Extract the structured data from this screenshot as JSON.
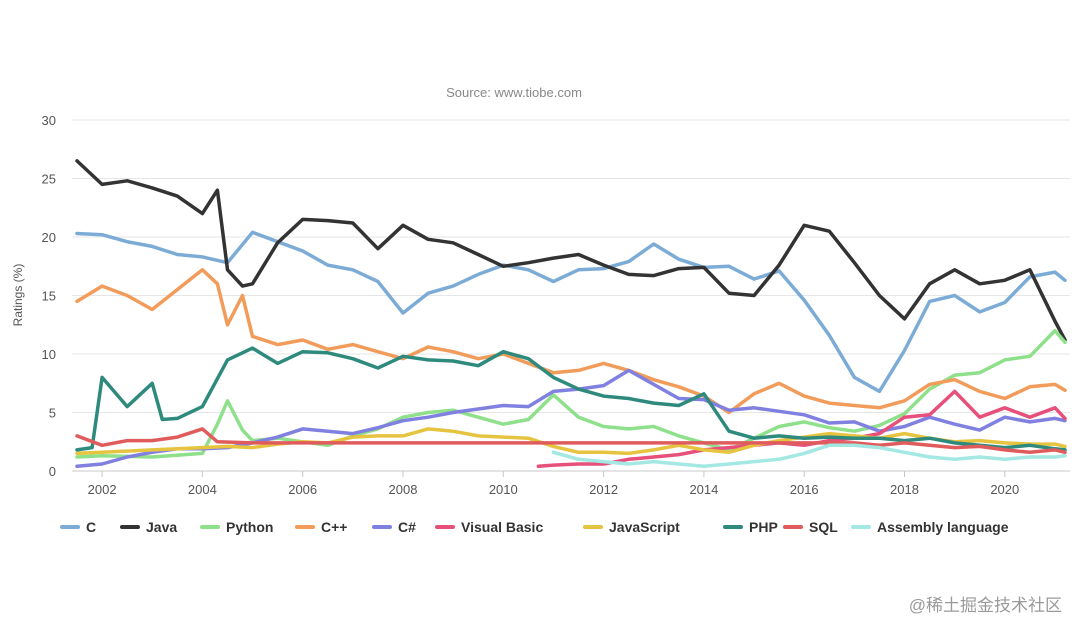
{
  "chart_data": {
    "type": "line",
    "subtitle": "Source: www.tiobe.com",
    "ylabel": "Ratings (%)",
    "xlabel": "",
    "ylim": [
      0,
      30
    ],
    "xlim": [
      2001.4,
      2021.3
    ],
    "yticks": [
      0,
      5,
      10,
      15,
      20,
      25,
      30
    ],
    "xticks": [
      2002,
      2004,
      2006,
      2008,
      2010,
      2012,
      2014,
      2016,
      2018,
      2020
    ],
    "ytick_labels": [
      "0",
      "5",
      "10",
      "15",
      "20",
      "25",
      "30"
    ],
    "xtick_labels": [
      "2002",
      "2004",
      "2006",
      "2008",
      "2010",
      "2012",
      "2014",
      "2016",
      "2018",
      "2020"
    ],
    "grid": true,
    "legend_position": "bottom",
    "series": [
      {
        "name": "C",
        "color": "#7cacd6",
        "x": [
          2001.5,
          2002,
          2002.5,
          2003,
          2003.5,
          2004,
          2004.5,
          2005,
          2005.5,
          2006,
          2006.5,
          2007,
          2007.5,
          2008,
          2008.5,
          2009,
          2009.5,
          2010,
          2010.5,
          2011,
          2011.5,
          2012,
          2012.5,
          2013,
          2013.5,
          2014,
          2014.5,
          2015,
          2015.5,
          2016,
          2016.5,
          2017,
          2017.5,
          2018,
          2018.5,
          2019,
          2019.5,
          2020,
          2020.5,
          2021,
          2021.2
        ],
        "y": [
          20.3,
          20.2,
          19.6,
          19.2,
          18.5,
          18.3,
          17.8,
          20.4,
          19.6,
          18.8,
          17.6,
          17.2,
          16.2,
          13.5,
          15.2,
          15.8,
          16.8,
          17.6,
          17.2,
          16.2,
          17.2,
          17.3,
          17.9,
          19.4,
          18.1,
          17.4,
          17.5,
          16.4,
          17.1,
          14.6,
          11.6,
          8.0,
          6.8,
          10.3,
          14.5,
          15.0,
          13.6,
          14.4,
          16.6,
          17.0,
          16.3
        ]
      },
      {
        "name": "Java",
        "color": "#333333",
        "x": [
          2001.5,
          2002,
          2002.5,
          2003,
          2003.5,
          2004,
          2004.3,
          2004.5,
          2004.8,
          2005,
          2005.5,
          2006,
          2006.5,
          2007,
          2007.5,
          2008,
          2008.5,
          2009,
          2009.5,
          2010,
          2010.5,
          2011,
          2011.5,
          2012,
          2012.5,
          2013,
          2013.5,
          2014,
          2014.5,
          2015,
          2015.5,
          2016,
          2016.5,
          2017,
          2017.5,
          2018,
          2018.5,
          2019,
          2019.5,
          2020,
          2020.5,
          2021,
          2021.2
        ],
        "y": [
          26.5,
          24.5,
          24.8,
          24.2,
          23.5,
          22.0,
          24.0,
          17.2,
          15.8,
          16.0,
          19.5,
          21.5,
          21.4,
          21.2,
          19.0,
          21.0,
          19.8,
          19.5,
          18.5,
          17.5,
          17.8,
          18.2,
          18.5,
          17.6,
          16.8,
          16.7,
          17.3,
          17.4,
          15.2,
          15.0,
          17.6,
          21.0,
          20.5,
          17.8,
          15.0,
          13.0,
          16.0,
          17.2,
          16.0,
          16.3,
          17.2,
          12.8,
          11.2
        ]
      },
      {
        "name": "Python",
        "color": "#8fe08a",
        "x": [
          2001.5,
          2002,
          2003,
          2004,
          2004.3,
          2004.5,
          2004.8,
          2005,
          2005.5,
          2006,
          2006.5,
          2007,
          2007.5,
          2008,
          2008.5,
          2009,
          2009.5,
          2010,
          2010.5,
          2011,
          2011.5,
          2012,
          2012.5,
          2013,
          2013.5,
          2014,
          2014.5,
          2015,
          2015.5,
          2016,
          2016.5,
          2017,
          2017.5,
          2018,
          2018.5,
          2019,
          2019.5,
          2020,
          2020.5,
          2021,
          2021.2
        ],
        "y": [
          1.2,
          1.3,
          1.2,
          1.5,
          4.0,
          6.0,
          3.5,
          2.6,
          2.8,
          2.5,
          2.2,
          3.0,
          3.6,
          4.6,
          5.0,
          5.2,
          4.6,
          4.0,
          4.4,
          6.5,
          4.6,
          3.8,
          3.6,
          3.8,
          3.0,
          2.4,
          1.8,
          2.8,
          3.8,
          4.2,
          3.7,
          3.4,
          3.9,
          4.9,
          7.0,
          8.2,
          8.4,
          9.5,
          9.8,
          12.0,
          11.0
        ]
      },
      {
        "name": "C++",
        "color": "#f29c5b",
        "x": [
          2001.5,
          2002,
          2002.5,
          2003,
          2003.5,
          2004,
          2004.3,
          2004.5,
          2004.8,
          2005,
          2005.5,
          2006,
          2006.5,
          2007,
          2007.5,
          2008,
          2008.5,
          2009,
          2009.5,
          2010,
          2010.5,
          2011,
          2011.5,
          2012,
          2012.5,
          2013,
          2013.5,
          2014,
          2014.5,
          2015,
          2015.5,
          2016,
          2016.5,
          2017,
          2017.5,
          2018,
          2018.5,
          2019,
          2019.5,
          2020,
          2020.5,
          2021,
          2021.2
        ],
        "y": [
          14.5,
          15.8,
          15.0,
          13.8,
          15.5,
          17.2,
          16.0,
          12.5,
          15.0,
          11.5,
          10.8,
          11.2,
          10.4,
          10.8,
          10.2,
          9.6,
          10.6,
          10.2,
          9.6,
          10.0,
          9.2,
          8.4,
          8.6,
          9.2,
          8.6,
          7.8,
          7.2,
          6.4,
          5.0,
          6.6,
          7.5,
          6.4,
          5.8,
          5.6,
          5.4,
          6.0,
          7.4,
          7.8,
          6.8,
          6.2,
          7.2,
          7.4,
          6.9
        ]
      },
      {
        "name": "C#",
        "color": "#8080e0",
        "x": [
          2001.5,
          2002,
          2002.5,
          2003,
          2003.5,
          2004,
          2004.5,
          2005,
          2005.5,
          2006,
          2006.5,
          2007,
          2007.5,
          2008,
          2008.5,
          2009,
          2009.5,
          2010,
          2010.5,
          2011,
          2011.5,
          2012,
          2012.5,
          2013,
          2013.5,
          2014,
          2014.5,
          2015,
          2015.5,
          2016,
          2016.5,
          2017,
          2017.5,
          2018,
          2018.5,
          2019,
          2019.5,
          2020,
          2020.5,
          2021,
          2021.2
        ],
        "y": [
          0.4,
          0.6,
          1.2,
          1.6,
          1.9,
          1.9,
          2.0,
          2.4,
          2.9,
          3.6,
          3.4,
          3.2,
          3.7,
          4.3,
          4.6,
          5.0,
          5.3,
          5.6,
          5.5,
          6.8,
          7.0,
          7.3,
          8.6,
          7.4,
          6.2,
          6.1,
          5.2,
          5.4,
          5.1,
          4.8,
          4.1,
          4.2,
          3.4,
          3.8,
          4.6,
          4.0,
          3.5,
          4.6,
          4.2,
          4.5,
          4.3
        ]
      },
      {
        "name": "Visual Basic",
        "color": "#e6507a",
        "x": [
          2010.7,
          2011,
          2011.5,
          2012,
          2012.5,
          2013,
          2013.5,
          2014,
          2014.5,
          2015,
          2015.5,
          2016,
          2016.5,
          2017,
          2017.5,
          2018,
          2018.5,
          2019,
          2019.5,
          2020,
          2020.5,
          2021,
          2021.2
        ],
        "y": [
          0.4,
          0.5,
          0.6,
          0.6,
          1.0,
          1.2,
          1.4,
          1.8,
          2.0,
          2.2,
          2.4,
          2.2,
          2.6,
          2.8,
          3.2,
          4.6,
          4.8,
          6.8,
          4.6,
          5.4,
          4.6,
          5.4,
          4.5
        ]
      },
      {
        "name": "JavaScript",
        "color": "#e6c440",
        "x": [
          2001.5,
          2002,
          2003,
          2004,
          2004.5,
          2005,
          2005.5,
          2006,
          2006.5,
          2007,
          2007.5,
          2008,
          2008.5,
          2009,
          2009.5,
          2010,
          2010.5,
          2011,
          2011.5,
          2012,
          2012.5,
          2013,
          2013.5,
          2014,
          2014.5,
          2015,
          2015.5,
          2016,
          2016.5,
          2017,
          2017.5,
          2018,
          2018.5,
          2019,
          2019.5,
          2020,
          2020.5,
          2021,
          2021.2
        ],
        "y": [
          1.5,
          1.6,
          1.8,
          2.0,
          2.1,
          2.0,
          2.3,
          2.5,
          2.4,
          2.9,
          3.0,
          3.0,
          3.6,
          3.4,
          3.0,
          2.9,
          2.8,
          2.1,
          1.6,
          1.6,
          1.5,
          1.8,
          2.2,
          1.8,
          1.6,
          2.2,
          2.6,
          2.9,
          3.2,
          3.0,
          2.8,
          3.2,
          2.8,
          2.5,
          2.6,
          2.4,
          2.3,
          2.3,
          2.1
        ]
      },
      {
        "name": "PHP",
        "color": "#2f8a7e",
        "x": [
          2001.5,
          2001.8,
          2002,
          2002.5,
          2003,
          2003.2,
          2003.5,
          2004,
          2004.5,
          2005,
          2005.5,
          2006,
          2006.5,
          2007,
          2007.5,
          2008,
          2008.5,
          2009,
          2009.5,
          2010,
          2010.5,
          2011,
          2011.5,
          2012,
          2012.5,
          2013,
          2013.5,
          2014,
          2014.5,
          2015,
          2015.5,
          2016,
          2016.5,
          2017,
          2017.5,
          2018,
          2018.5,
          2019,
          2019.5,
          2020,
          2020.5,
          2021,
          2021.2
        ],
        "y": [
          1.8,
          2.0,
          8.0,
          5.5,
          7.5,
          4.4,
          4.5,
          5.5,
          9.5,
          10.5,
          9.2,
          10.2,
          10.1,
          9.6,
          8.8,
          9.8,
          9.5,
          9.4,
          9.0,
          10.2,
          9.6,
          8.0,
          7.0,
          6.4,
          6.2,
          5.8,
          5.6,
          6.6,
          3.4,
          2.8,
          3.0,
          2.8,
          2.9,
          2.8,
          2.8,
          2.6,
          2.8,
          2.4,
          2.2,
          2.0,
          2.2,
          1.9,
          1.8
        ]
      },
      {
        "name": "SQL",
        "color": "#e05c5c",
        "x": [
          2001.5,
          2002,
          2002.5,
          2003,
          2003.5,
          2004,
          2004.3,
          2005,
          2006,
          2008,
          2010,
          2012,
          2014,
          2016,
          2017,
          2017.5,
          2018,
          2018.5,
          2019,
          2019.5,
          2020,
          2020.5,
          2021,
          2021.2
        ],
        "y": [
          3.0,
          2.2,
          2.6,
          2.6,
          2.9,
          3.6,
          2.5,
          2.4,
          2.4,
          2.4,
          2.4,
          2.4,
          2.4,
          2.4,
          2.4,
          2.2,
          2.4,
          2.2,
          2.0,
          2.1,
          1.8,
          1.6,
          1.8,
          1.6
        ]
      },
      {
        "name": "Assembly language",
        "color": "#a3e8e3",
        "x": [
          2011,
          2011.5,
          2012,
          2012.5,
          2013,
          2013.5,
          2014,
          2014.5,
          2015,
          2015.5,
          2016,
          2016.5,
          2017,
          2017.5,
          2018,
          2018.5,
          2019,
          2019.5,
          2020,
          2020.5,
          2021,
          2021.2
        ],
        "y": [
          1.6,
          1.0,
          0.8,
          0.6,
          0.8,
          0.6,
          0.4,
          0.6,
          0.8,
          1.0,
          1.5,
          2.2,
          2.2,
          2.0,
          1.6,
          1.2,
          1.0,
          1.2,
          1.0,
          1.2,
          1.2,
          1.3
        ]
      }
    ]
  },
  "watermark": "@稀土掘金技术社区"
}
